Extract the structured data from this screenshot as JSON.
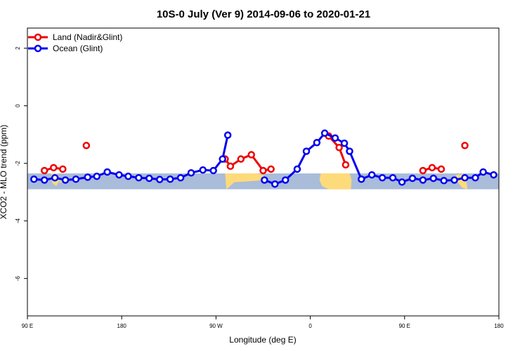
{
  "colors": {
    "land": "#ee0000",
    "ocean": "#0000ee",
    "ocean_band": "#a9bcd9",
    "land_band": "#fedb7a"
  },
  "chart_data": {
    "type": "line",
    "title": "10S-0 July (Ver 9)   2014-09-06 to 2020-01-21",
    "xlabel": "Longitude (deg E)",
    "ylabel": "XCO2 - MLO trend (ppm)",
    "xlim": [
      90,
      450
    ],
    "ylim": [
      -7.3,
      2.7
    ],
    "x_ticks": [
      {
        "x": 90,
        "label": "90 E"
      },
      {
        "x": 162,
        "label": "180"
      },
      {
        "x": 234,
        "label": "90 W"
      },
      {
        "x": 306,
        "label": "0"
      },
      {
        "x": 378,
        "label": "90 E"
      },
      {
        "x": 450,
        "label": "180"
      }
    ],
    "y_ticks": [
      {
        "y": 2,
        "label": "2"
      },
      {
        "y": 0,
        "label": "0"
      },
      {
        "y": -2,
        "label": "-2"
      },
      {
        "y": -4,
        "label": "-4"
      },
      {
        "y": -6,
        "label": "-6"
      }
    ],
    "legend": {
      "position": "top-left"
    },
    "band": {
      "y_top": -2.35,
      "y_bottom": -2.9
    },
    "series": [
      {
        "name": "Land (Nadir&Glint)",
        "color_key": "land",
        "segments": [
          [
            {
              "x": 103,
              "y": -2.25
            },
            {
              "x": 110,
              "y": -2.15
            },
            {
              "x": 117,
              "y": -2.2
            }
          ],
          [
            {
              "x": 135,
              "y": -1.38
            }
          ],
          [
            {
              "x": 241,
              "y": -1.85
            },
            {
              "x": 245,
              "y": -2.1
            },
            {
              "x": 253,
              "y": -1.85
            },
            {
              "x": 261,
              "y": -1.7
            },
            {
              "x": 270,
              "y": -2.25
            },
            {
              "x": 276,
              "y": -2.2
            }
          ],
          [
            {
              "x": 320,
              "y": -1.05
            },
            {
              "x": 328,
              "y": -1.45
            },
            {
              "x": 333,
              "y": -2.05
            }
          ],
          [
            {
              "x": 392,
              "y": -2.25
            },
            {
              "x": 399,
              "y": -2.15
            },
            {
              "x": 406,
              "y": -2.2
            }
          ],
          [
            {
              "x": 424,
              "y": -1.38
            }
          ]
        ]
      },
      {
        "name": "Ocean (Glint)",
        "color_key": "ocean",
        "segments": [
          [
            {
              "x": 95,
              "y": -2.55
            },
            {
              "x": 103,
              "y": -2.58
            },
            {
              "x": 111,
              "y": -2.5
            },
            {
              "x": 119,
              "y": -2.58
            },
            {
              "x": 127,
              "y": -2.55
            },
            {
              "x": 136,
              "y": -2.48
            },
            {
              "x": 143,
              "y": -2.45
            },
            {
              "x": 151,
              "y": -2.3
            },
            {
              "x": 160,
              "y": -2.4
            },
            {
              "x": 167,
              "y": -2.45
            },
            {
              "x": 175,
              "y": -2.5
            },
            {
              "x": 183,
              "y": -2.52
            },
            {
              "x": 191,
              "y": -2.56
            },
            {
              "x": 199,
              "y": -2.55
            },
            {
              "x": 207,
              "y": -2.5
            },
            {
              "x": 215,
              "y": -2.33
            },
            {
              "x": 224,
              "y": -2.23
            },
            {
              "x": 232,
              "y": -2.25
            },
            {
              "x": 239,
              "y": -1.85
            },
            {
              "x": 243,
              "y": -1.02
            }
          ],
          [
            {
              "x": 271,
              "y": -2.58
            },
            {
              "x": 279,
              "y": -2.72
            },
            {
              "x": 287,
              "y": -2.58
            },
            {
              "x": 296,
              "y": -2.2
            },
            {
              "x": 303,
              "y": -1.58
            },
            {
              "x": 311,
              "y": -1.28
            },
            {
              "x": 317,
              "y": -0.95
            },
            {
              "x": 325,
              "y": -1.12
            },
            {
              "x": 332,
              "y": -1.3
            },
            {
              "x": 336,
              "y": -1.58
            },
            {
              "x": 345,
              "y": -2.55
            },
            {
              "x": 353,
              "y": -2.4
            },
            {
              "x": 361,
              "y": -2.5
            },
            {
              "x": 369,
              "y": -2.5
            },
            {
              "x": 376,
              "y": -2.65
            },
            {
              "x": 384,
              "y": -2.52
            },
            {
              "x": 392,
              "y": -2.58
            },
            {
              "x": 400,
              "y": -2.52
            },
            {
              "x": 408,
              "y": -2.6
            },
            {
              "x": 416,
              "y": -2.58
            },
            {
              "x": 424,
              "y": -2.5
            },
            {
              "x": 432,
              "y": -2.5
            },
            {
              "x": 438,
              "y": -2.3
            },
            {
              "x": 446,
              "y": -2.4
            }
          ]
        ]
      }
    ]
  }
}
